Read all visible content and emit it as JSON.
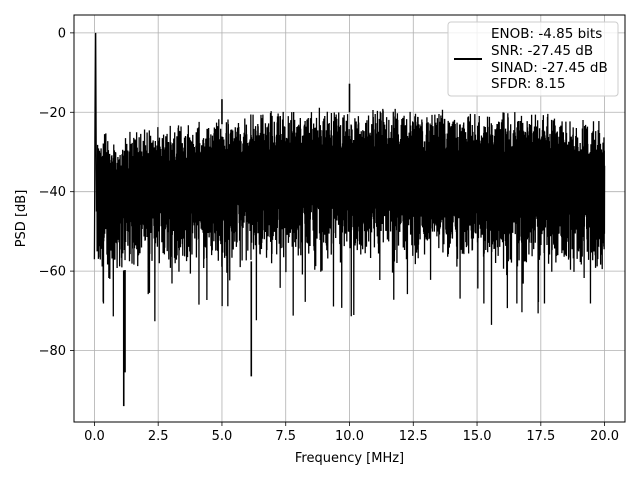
{
  "chart_data": {
    "type": "line",
    "title": "",
    "xlabel": "Frequency [MHz]",
    "ylabel": "PSD [dB]",
    "xlim": [
      -0.8,
      20.8
    ],
    "ylim": [
      -98,
      4.5
    ],
    "xticks": [
      0.0,
      2.5,
      5.0,
      7.5,
      10.0,
      12.5,
      15.0,
      17.5,
      20.0
    ],
    "xtick_labels": [
      "0.0",
      "2.5",
      "5.0",
      "7.5",
      "10.0",
      "12.5",
      "15.0",
      "17.5",
      "20.0"
    ],
    "yticks": [
      0,
      -20,
      -40,
      -60,
      -80
    ],
    "ytick_labels": [
      "0",
      "−20",
      "−40",
      "−60",
      "−80"
    ],
    "grid": true,
    "legend_position": "top-right",
    "series": [
      {
        "color": "#000000",
        "legend_lines": [
          "ENOB: -4.85 bits",
          "SNR: -27.45 dB",
          "SINAD: -27.45 dB",
          "SFDR: 8.15"
        ],
        "fundamental": {
          "x": 0.05,
          "y": 0.0
        },
        "spurs": [
          {
            "x": 10.0,
            "y": -12.8
          },
          {
            "x": 5.0,
            "y": -16.7
          },
          {
            "x": 1.15,
            "y": -94.0
          },
          {
            "x": 6.15,
            "y": -86.5
          },
          {
            "x": 1.2,
            "y": -85.5
          }
        ],
        "envelope": [
          {
            "x": 0.0,
            "upper": -23.0,
            "lower": -57.0
          },
          {
            "x": 0.1,
            "upper": -24.0,
            "lower": -65.0
          },
          {
            "x": 1.0,
            "upper": -25.0,
            "lower": -62.0
          },
          {
            "x": 2.5,
            "upper": -23.0,
            "lower": -60.0
          },
          {
            "x": 5.0,
            "upper": -21.0,
            "lower": -60.0
          },
          {
            "x": 7.5,
            "upper": -19.0,
            "lower": -59.0
          },
          {
            "x": 10.0,
            "upper": -18.0,
            "lower": -59.0
          },
          {
            "x": 12.5,
            "upper": -19.0,
            "lower": -59.0
          },
          {
            "x": 15.0,
            "upper": -19.0,
            "lower": -60.0
          },
          {
            "x": 17.5,
            "upper": -20.0,
            "lower": -61.0
          },
          {
            "x": 20.0,
            "upper": -22.0,
            "lower": -62.0
          }
        ]
      }
    ]
  }
}
